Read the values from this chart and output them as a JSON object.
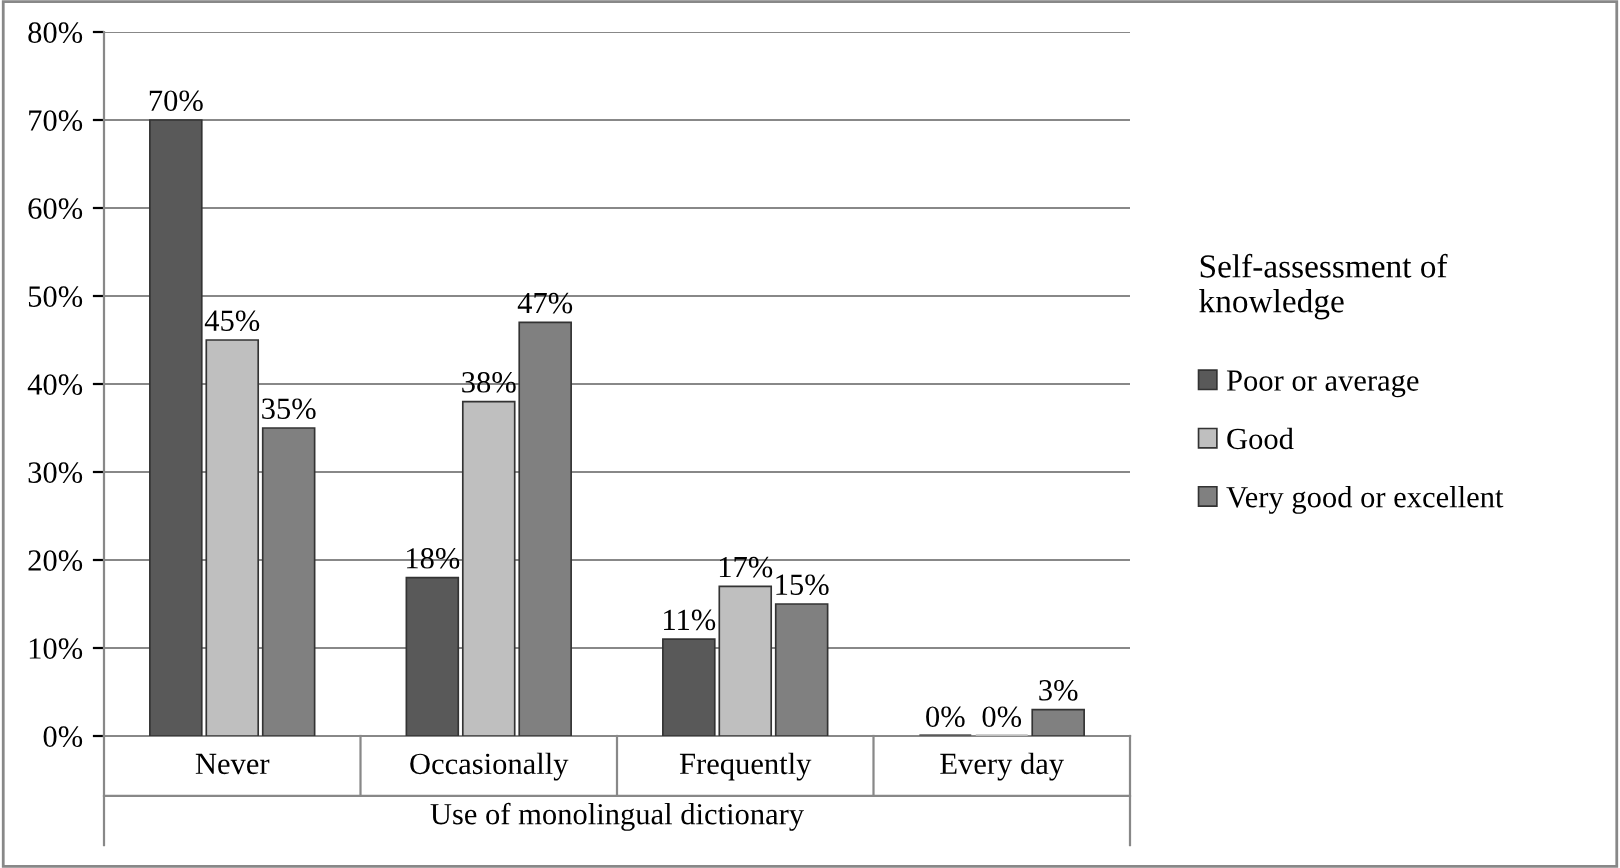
{
  "chart_data": {
    "type": "bar",
    "xlabel": "Use of monolingual dictionary",
    "legend_title": "Self-assessment of knowledge",
    "categories": [
      "Never",
      "Occasionally",
      "Frequently",
      "Every day"
    ],
    "series": [
      {
        "name": "Poor or average",
        "color": "#595959",
        "values": [
          70,
          18,
          11,
          0
        ],
        "value_labels": [
          "70%",
          "18%",
          "11%",
          "0%"
        ]
      },
      {
        "name": "Good",
        "color": "#bfbfbf",
        "values": [
          45,
          38,
          17,
          0
        ],
        "value_labels": [
          "45%",
          "38%",
          "17%",
          "0%"
        ]
      },
      {
        "name": "Very good or excellent",
        "color": "#808080",
        "values": [
          35,
          47,
          15,
          3
        ],
        "value_labels": [
          "35%",
          "47%",
          "15%",
          "3%"
        ]
      }
    ],
    "ylim": [
      0,
      80
    ],
    "yticks": [
      {
        "value": 0,
        "label": "0%"
      },
      {
        "value": 10,
        "label": "10%"
      },
      {
        "value": 20,
        "label": "20%"
      },
      {
        "value": 30,
        "label": "30%"
      },
      {
        "value": 40,
        "label": "40%"
      },
      {
        "value": 50,
        "label": "50%"
      },
      {
        "value": 60,
        "label": "60%"
      },
      {
        "value": 70,
        "label": "70%"
      },
      {
        "value": 80,
        "label": "80%"
      }
    ],
    "grid": "y",
    "legend": "right"
  }
}
